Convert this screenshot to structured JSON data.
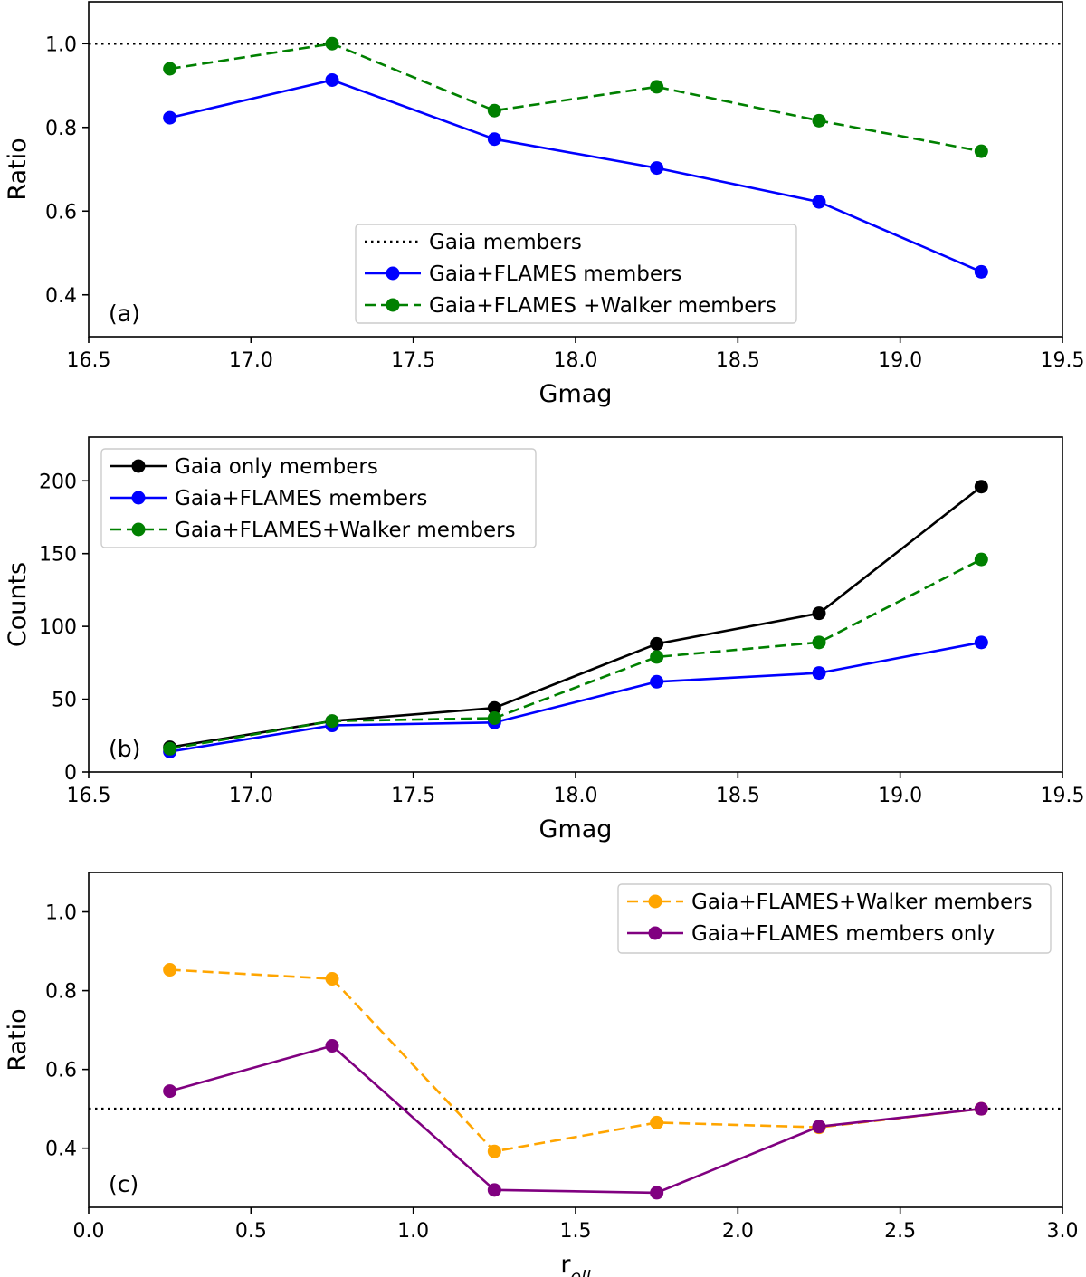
{
  "chart_data": [
    {
      "type": "line",
      "panel_label": "(a)",
      "xlabel": "Gmag",
      "ylabel": "Ratio",
      "xlim": [
        16.5,
        19.5
      ],
      "ylim": [
        0.3,
        1.1
      ],
      "xticks": [
        "16.5",
        "17.0",
        "17.5",
        "18.0",
        "18.5",
        "19.0",
        "19.5"
      ],
      "yticks": [
        "0.4",
        "0.6",
        "0.8",
        "1.0"
      ],
      "legend_position": "lower-center",
      "reference_line": {
        "name": "Gaia members",
        "y": 1.0,
        "color": "#000000",
        "style": "dotted"
      },
      "x": [
        16.75,
        17.25,
        17.75,
        18.25,
        18.75,
        19.25
      ],
      "series": [
        {
          "name": "Gaia+FLAMES members",
          "color": "#0000ff",
          "style": "solid",
          "values": [
            0.823,
            0.913,
            0.772,
            0.703,
            0.622,
            0.455
          ]
        },
        {
          "name": "Gaia+FLAMES +Walker members",
          "color": "#008000",
          "style": "dashed",
          "values": [
            0.94,
            1.0,
            0.84,
            0.897,
            0.816,
            0.743
          ]
        }
      ]
    },
    {
      "type": "line",
      "panel_label": "(b)",
      "xlabel": "Gmag",
      "ylabel": "Counts",
      "xlim": [
        16.5,
        19.5
      ],
      "ylim": [
        0,
        230
      ],
      "xticks": [
        "16.5",
        "17.0",
        "17.5",
        "18.0",
        "18.5",
        "19.0",
        "19.5"
      ],
      "yticks": [
        "0",
        "50",
        "100",
        "150",
        "200"
      ],
      "legend_position": "upper-left",
      "x": [
        16.75,
        17.25,
        17.75,
        18.25,
        18.75,
        19.25
      ],
      "series": [
        {
          "name": "Gaia only members",
          "color": "#000000",
          "style": "solid",
          "values": [
            17,
            35,
            44,
            88,
            109,
            196
          ]
        },
        {
          "name": "Gaia+FLAMES members",
          "color": "#0000ff",
          "style": "solid",
          "values": [
            14,
            32,
            34,
            62,
            68,
            89
          ]
        },
        {
          "name": "Gaia+FLAMES+Walker members",
          "color": "#008000",
          "style": "dashed",
          "values": [
            16,
            35,
            37,
            79,
            89,
            146
          ]
        }
      ]
    },
    {
      "type": "line",
      "panel_label": "(c)",
      "xlabel": "r",
      "xlabel_sub": "ell",
      "ylabel": "Ratio",
      "xlim": [
        0.0,
        3.0
      ],
      "ylim": [
        0.25,
        1.1
      ],
      "xticks": [
        "0.0",
        "0.5",
        "1.0",
        "1.5",
        "2.0",
        "2.5",
        "3.0"
      ],
      "yticks": [
        "0.4",
        "0.6",
        "0.8",
        "1.0"
      ],
      "legend_position": "upper-right",
      "reference_line": {
        "name": "",
        "y": 0.5,
        "color": "#000000",
        "style": "dotted"
      },
      "x": [
        0.25,
        0.75,
        1.25,
        1.75,
        2.25,
        2.75
      ],
      "series": [
        {
          "name": "Gaia+FLAMES+Walker members",
          "color": "#ffa500",
          "style": "dashed",
          "values": [
            0.853,
            0.83,
            0.392,
            0.465,
            0.453,
            0.5
          ]
        },
        {
          "name": "Gaia+FLAMES members only",
          "color": "#800080",
          "style": "solid",
          "values": [
            0.545,
            0.66,
            0.294,
            0.287,
            0.455,
            0.5
          ]
        }
      ]
    }
  ]
}
